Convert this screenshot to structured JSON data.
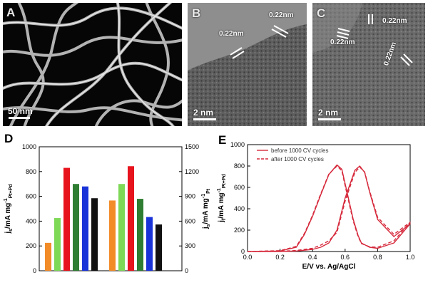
{
  "panels": {
    "a": {
      "label": "A",
      "scale": "50 nm"
    },
    "b": {
      "label": "B",
      "scale": "2 nm",
      "spacings": [
        "0.22nm",
        "0.22nm"
      ]
    },
    "c": {
      "label": "C",
      "scale": "2 nm",
      "spacings": [
        "0.22nm",
        "0.22nm",
        "0.22nm"
      ]
    },
    "d": {
      "label": "D"
    },
    "e": {
      "label": "E"
    }
  },
  "chart_data": [
    {
      "type": "bar",
      "panel": "D",
      "groups": [
        {
          "axis": "left",
          "values": [
            225,
            425,
            830,
            700,
            680,
            585
          ]
        },
        {
          "axis": "right",
          "values": [
            850,
            1050,
            1265,
            870,
            650,
            560
          ]
        }
      ],
      "bar_colors": [
        "#f28c28",
        "#7ed957",
        "#e8141d",
        "#2e7d32",
        "#1a33d9",
        "#111111"
      ],
      "left_axis": {
        "ticks": [
          "0",
          "200",
          "400",
          "600",
          "800",
          "1000"
        ],
        "ylim": [
          0,
          1000
        ],
        "label_main": "j",
        "label_sub": "s",
        "label_rest": "/mA mg",
        "label_sup": "-1",
        "label_sub2": "Pt+Pd"
      },
      "right_axis": {
        "ticks": [
          "0",
          "300",
          "600",
          "900",
          "1200",
          "1500"
        ],
        "ylim": [
          0,
          1500
        ],
        "label_main": "j",
        "label_sub": "s",
        "label_rest": "/mA mg",
        "label_sup": "-1",
        "label_sub2": "Pt"
      }
    },
    {
      "type": "line",
      "panel": "E",
      "xlabel": "E/V vs. Ag/AgCl",
      "ylabel_main": "j",
      "ylabel_sub": "f",
      "ylabel_rest": "/mA mg",
      "ylabel_sup": "-1",
      "ylabel_sub2": "Pt+Pd",
      "xlim": [
        0.0,
        1.0
      ],
      "ylim": [
        0,
        1000
      ],
      "xticks": [
        "0.0",
        "0.2",
        "0.4",
        "0.6",
        "0.8",
        "1.0"
      ],
      "yticks": [
        "0",
        "200",
        "400",
        "600",
        "800",
        "1000"
      ],
      "color": "#d62a3c",
      "legend": [
        "before 1000 CV cycles",
        "after 1000 CV cycles"
      ],
      "series": [
        {
          "name": "before 1000 CV cycles",
          "style": "solid",
          "x": [
            0.0,
            0.2,
            0.3,
            0.35,
            0.4,
            0.45,
            0.5,
            0.55,
            0.58,
            0.62,
            0.65,
            0.68,
            0.7,
            0.75,
            0.8,
            0.9,
            1.0,
            0.9,
            0.8,
            0.75,
            0.72,
            0.69,
            0.66,
            0.6,
            0.55,
            0.5,
            0.45,
            0.4,
            0.3,
            0.2,
            0.0
          ],
          "y": [
            0,
            5,
            40,
            160,
            330,
            530,
            720,
            810,
            770,
            500,
            300,
            150,
            80,
            40,
            30,
            80,
            260,
            140,
            300,
            560,
            740,
            800,
            760,
            500,
            200,
            80,
            40,
            20,
            5,
            0,
            0
          ]
        },
        {
          "name": "after 1000 CV cycles",
          "style": "dashed",
          "x": [
            0.0,
            0.2,
            0.3,
            0.35,
            0.4,
            0.45,
            0.5,
            0.55,
            0.58,
            0.62,
            0.65,
            0.68,
            0.7,
            0.75,
            0.8,
            0.9,
            1.0,
            0.9,
            0.8,
            0.75,
            0.72,
            0.69,
            0.66,
            0.6,
            0.55,
            0.5,
            0.45,
            0.4,
            0.3,
            0.2,
            0.0
          ],
          "y": [
            0,
            8,
            48,
            170,
            340,
            540,
            725,
            800,
            755,
            480,
            285,
            140,
            75,
            45,
            40,
            100,
            275,
            160,
            320,
            570,
            745,
            790,
            740,
            470,
            180,
            100,
            60,
            30,
            10,
            2,
            0
          ]
        }
      ]
    }
  ]
}
